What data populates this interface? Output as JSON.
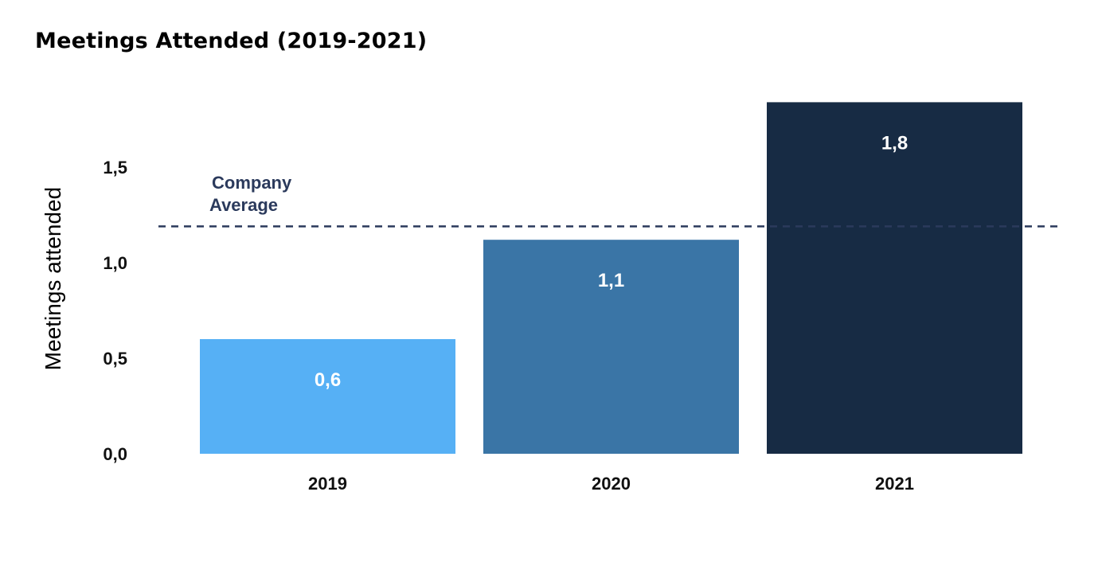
{
  "chart_data": {
    "type": "bar",
    "title": "Meetings Attended (2019-2021)",
    "ylabel": "Meetings attended",
    "xlabel": "",
    "categories": [
      "2019",
      "2020",
      "2021"
    ],
    "values": [
      0.6,
      1.12,
      1.84
    ],
    "value_labels": [
      "0,6",
      "1,1",
      "1,8"
    ],
    "bar_colors": [
      "#56b0f5",
      "#3a75a6",
      "#172b44"
    ],
    "yticks": [
      0.0,
      0.5,
      1.0,
      1.5
    ],
    "ytick_labels": [
      "0,0",
      "0,5",
      "1,0",
      "1,5"
    ],
    "ylim": [
      0,
      1.84
    ],
    "grid": false,
    "reference_line": {
      "value": 1.19,
      "label_lines": [
        "Company",
        "Average"
      ],
      "color": "#2b3a5c",
      "style": "dashed"
    }
  }
}
